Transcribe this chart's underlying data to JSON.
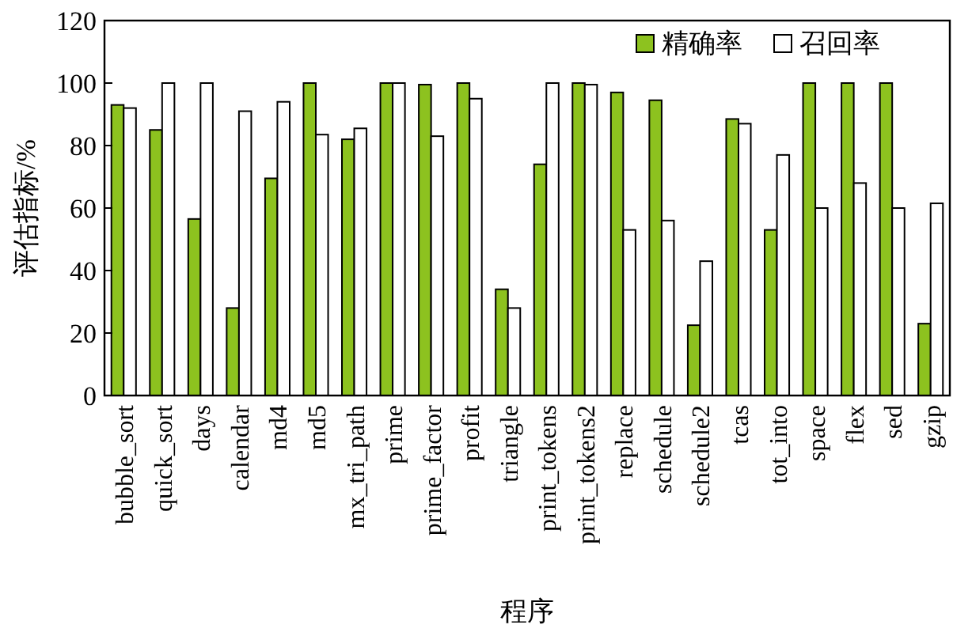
{
  "chart_data": {
    "type": "bar",
    "xlabel": "程序",
    "ylabel": "评估指标/%",
    "categories": [
      "bubble_sort",
      "quick_sort",
      "days",
      "calendar",
      "md4",
      "md5",
      "mx_tri_path",
      "prime",
      "prime_factor",
      "profit",
      "triangle",
      "print_tokens",
      "print_tokens2",
      "replace",
      "schedule",
      "schedule2",
      "tcas",
      "tot_into",
      "space",
      "flex",
      "sed",
      "gzip"
    ],
    "series": [
      {
        "name": "精确率",
        "color": "#8dc21f",
        "values": [
          93,
          85,
          56.5,
          28,
          69.5,
          100,
          82,
          100,
          99.5,
          100,
          34,
          74,
          100,
          97,
          94.5,
          22.5,
          88.5,
          53,
          100,
          100,
          100,
          23
        ]
      },
      {
        "name": "召回率",
        "color": "#ffffff",
        "values": [
          92,
          100,
          100,
          91,
          94,
          83.5,
          85.5,
          100,
          83,
          95,
          28,
          100,
          99.5,
          53,
          56,
          43,
          87,
          77,
          60,
          68,
          60,
          61.5
        ]
      }
    ],
    "ylim": [
      0,
      120
    ],
    "yticks": [
      0,
      20,
      40,
      60,
      80,
      100,
      120
    ],
    "grid": false,
    "legend": "top right"
  }
}
